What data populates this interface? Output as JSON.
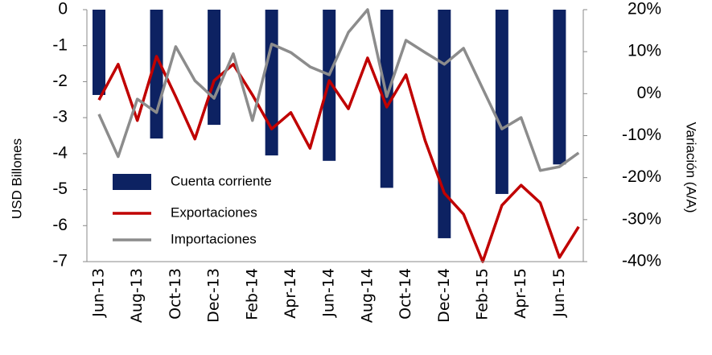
{
  "chart_data": {
    "type": "bar_line",
    "ylabel": "USD Billones",
    "y2label": "Variación (A/A)",
    "categories": [
      "Jun-13",
      null,
      "Aug-13",
      null,
      "Oct-13",
      null,
      "Dec-13",
      null,
      "Feb-14",
      null,
      "Apr-14",
      null,
      "Jun-14",
      null,
      "Aug-14",
      null,
      "Oct-14",
      null,
      "Dec-14",
      null,
      "Feb-15",
      null,
      "Apr-15",
      null,
      "Jun-15",
      null
    ],
    "series": [
      {
        "name": "Cuenta corriente",
        "type": "bar",
        "color": "#0d2262",
        "values": [
          -2.37,
          null,
          null,
          -3.58,
          null,
          null,
          -3.2,
          null,
          null,
          -4.05,
          null,
          null,
          -4.2,
          null,
          null,
          -4.95,
          null,
          null,
          -6.35,
          null,
          null,
          -5.12,
          null,
          null,
          -4.3,
          null
        ]
      },
      {
        "name": "Exportaciones",
        "type": "line",
        "axis": "y2",
        "color": "#c00000",
        "values": [
          -1.5,
          7,
          -6.4,
          8.9,
          -0.7,
          -10.8,
          3.1,
          7,
          -0.3,
          -8.4,
          -4.5,
          -13,
          3.1,
          -3.6,
          8.5,
          -3.2,
          4.5,
          -11.2,
          -23.7,
          -28.7,
          -40,
          -26.6,
          -21.8,
          -26,
          -39,
          -31.7
        ]
      },
      {
        "name": "Importaciones",
        "type": "line",
        "axis": "y2",
        "color": "#8c8c8c",
        "values": [
          -4.9,
          -15,
          -1.3,
          -4.5,
          11.2,
          3.1,
          -1.1,
          9.5,
          -6.4,
          11.8,
          9.8,
          6.4,
          4.5,
          14.6,
          20,
          -0.7,
          12.7,
          9.8,
          7,
          10.8,
          1.2,
          -8.4,
          -5.7,
          -18.3,
          -17.4,
          -14.1
        ]
      }
    ],
    "ylim": [
      -7,
      0
    ],
    "yticks": [
      0,
      -1,
      -2,
      -3,
      -4,
      -5,
      -6,
      -7
    ],
    "y2lim": [
      -40,
      20
    ],
    "y2ticks": [
      {
        "value": 20,
        "label": "20%"
      },
      {
        "value": 10,
        "label": "10%"
      },
      {
        "value": 0,
        "label": "0%"
      },
      {
        "value": -10,
        "label": "-10%"
      },
      {
        "value": -20,
        "label": "-20%"
      },
      {
        "value": -30,
        "label": "-30%"
      },
      {
        "value": -40,
        "label": "-40%"
      }
    ],
    "legend": "lower left",
    "grid": false
  }
}
